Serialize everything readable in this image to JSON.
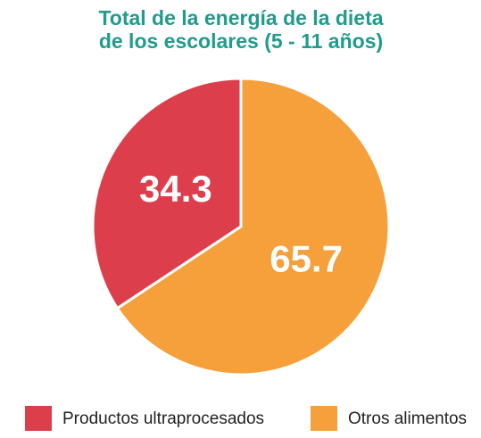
{
  "chart_data": {
    "type": "pie",
    "title": [
      "Total de la energía de la dieta",
      "de los escolares (5 - 11 años)"
    ],
    "categories": [
      "Productos ultraprocesados",
      "Otros alimentos"
    ],
    "values": [
      34.3,
      65.7
    ],
    "colors": [
      "#dc3f4b",
      "#f5a03b"
    ]
  }
}
